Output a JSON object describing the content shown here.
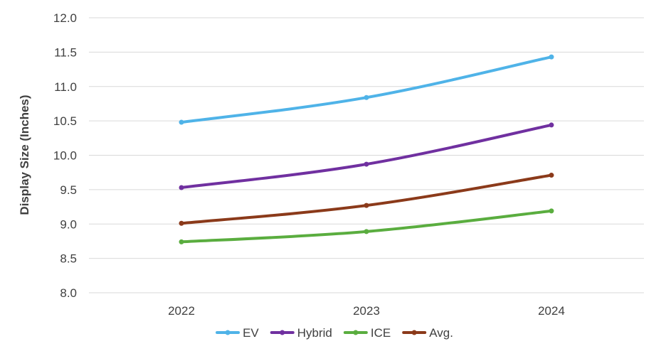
{
  "chart_data": {
    "type": "line",
    "title": "",
    "xlabel": "",
    "ylabel": "Display Size (Inches)",
    "categories": [
      "2022",
      "2023",
      "2024"
    ],
    "ylim": [
      8.0,
      12.0
    ],
    "yticks": [
      "8.0",
      "8.5",
      "9.0",
      "9.5",
      "10.0",
      "10.5",
      "11.0",
      "11.5",
      "12.0"
    ],
    "grid": true,
    "legend_position": "bottom",
    "series": [
      {
        "name": "EV",
        "color": "#4fb3e8",
        "values": [
          10.48,
          10.84,
          11.43
        ]
      },
      {
        "name": "Hybrid",
        "color": "#7030a0",
        "values": [
          9.53,
          9.87,
          10.44
        ]
      },
      {
        "name": "ICE",
        "color": "#5aad3f",
        "values": [
          8.74,
          8.89,
          9.19
        ]
      },
      {
        "name": "Avg.",
        "color": "#8b3a1a",
        "values": [
          9.01,
          9.27,
          9.71
        ]
      }
    ]
  }
}
